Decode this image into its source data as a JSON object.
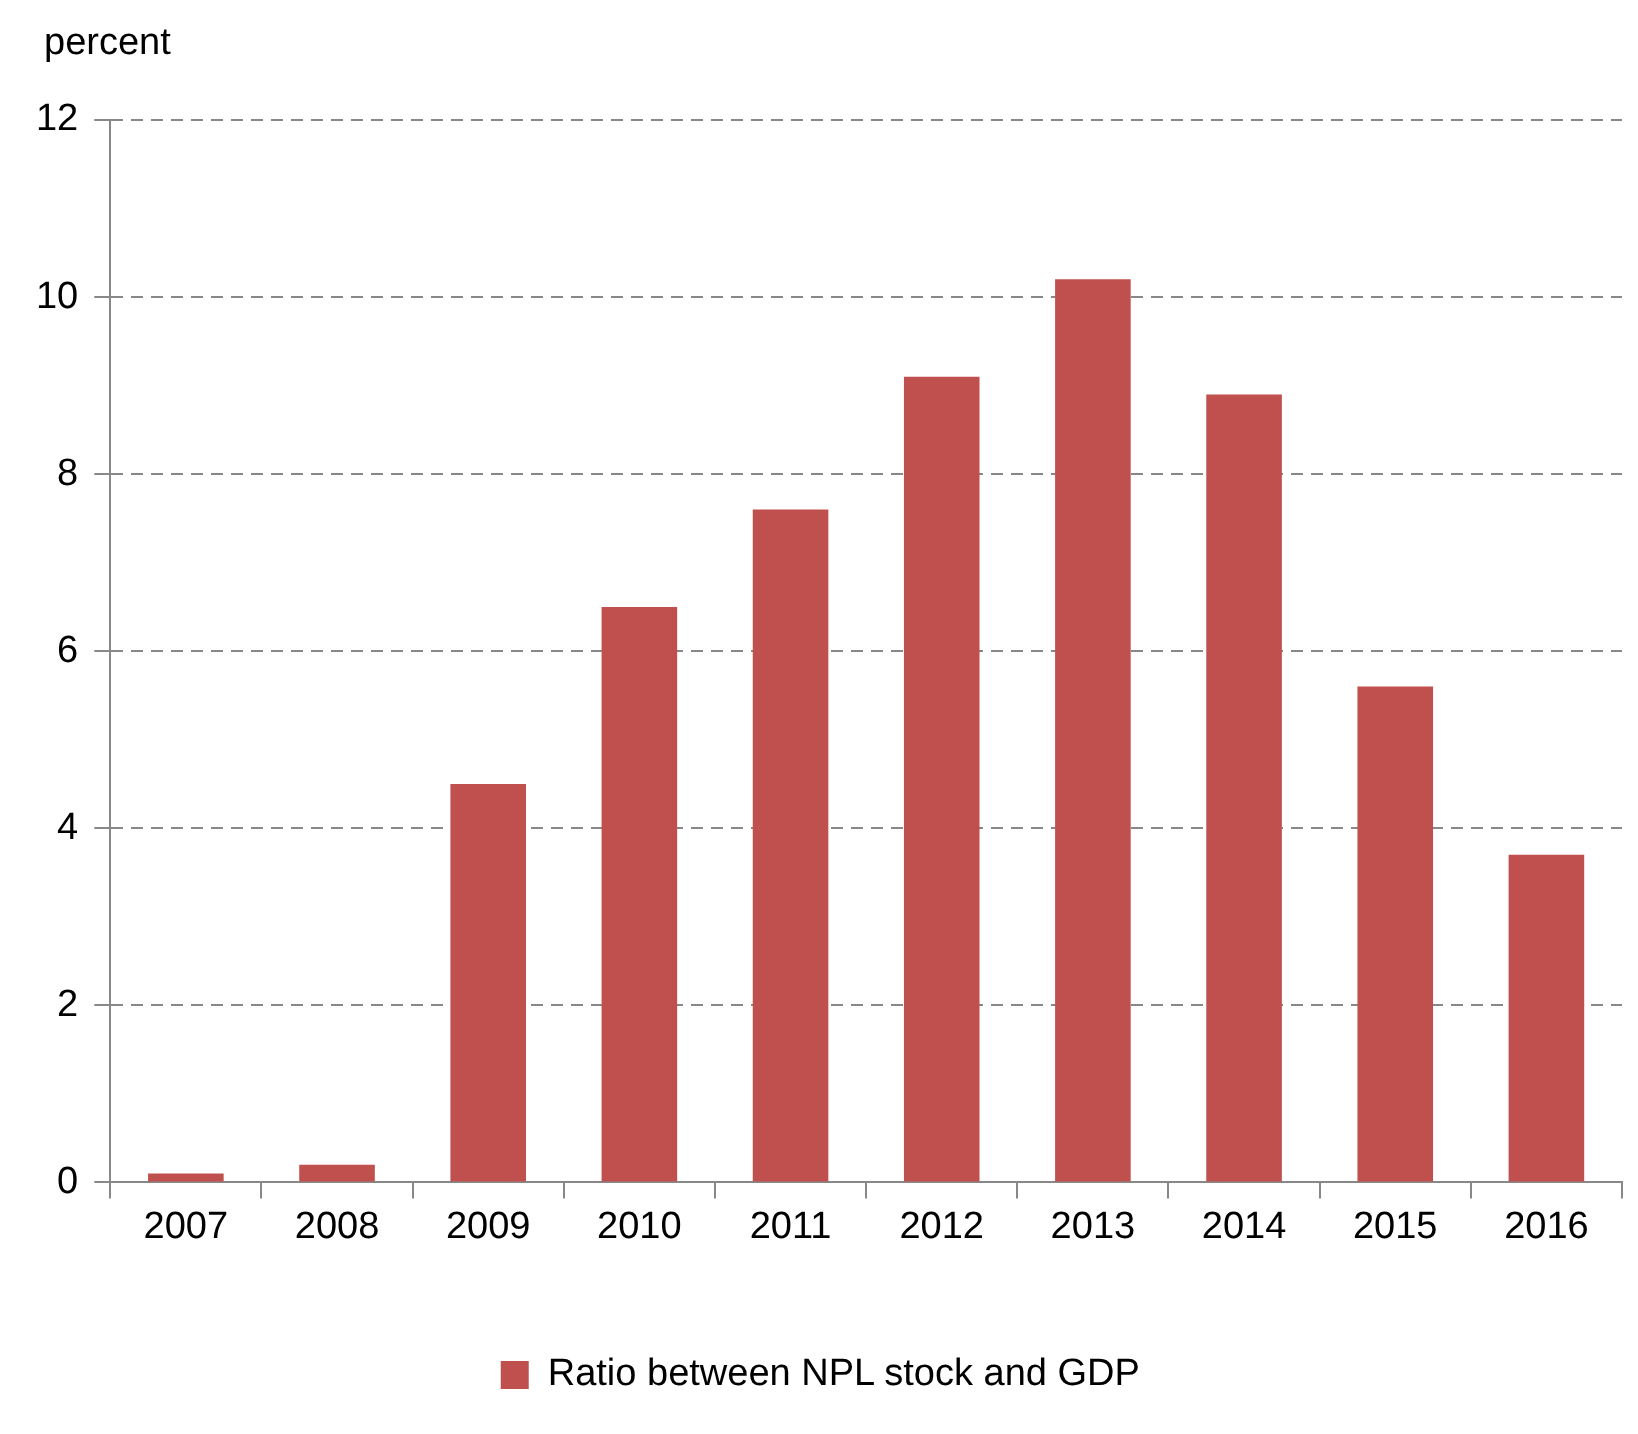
{
  "chart_data": {
    "type": "bar",
    "ylabel": "percent",
    "categories": [
      "2007",
      "2008",
      "2009",
      "2010",
      "2011",
      "2012",
      "2013",
      "2014",
      "2015",
      "2016"
    ],
    "series": [
      {
        "name": "Ratio between NPL stock and GDP",
        "color": "#c0504d",
        "values": [
          0.1,
          0.2,
          4.5,
          6.5,
          7.6,
          9.1,
          10.2,
          8.9,
          5.6,
          3.7
        ]
      }
    ],
    "ylim": [
      0,
      12
    ],
    "yticks": [
      0,
      2,
      4,
      6,
      8,
      10,
      12
    ],
    "grid": "y",
    "legend": "bottom"
  }
}
